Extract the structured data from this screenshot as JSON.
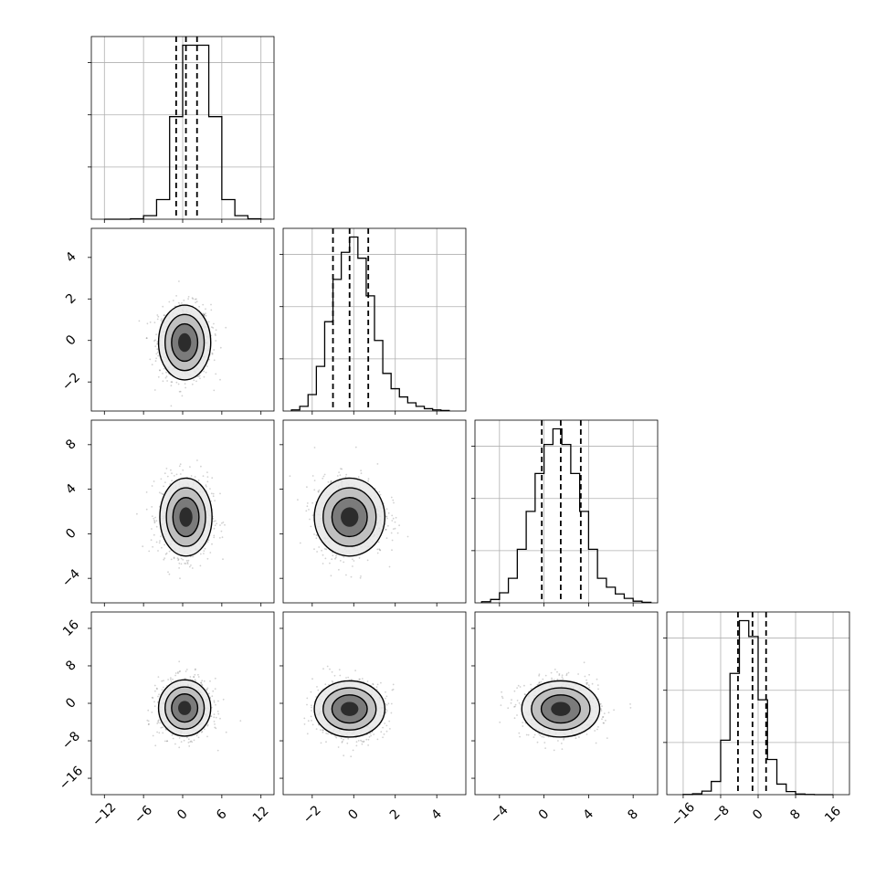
{
  "chart_data": {
    "type": "corner",
    "title": "",
    "parameters": [
      {
        "index": 0,
        "range": [
          -14,
          14
        ],
        "ticks": [
          -12,
          -6,
          0,
          6,
          12
        ],
        "tick_labels": [
          "−12",
          "−6",
          "0",
          "6",
          "12"
        ],
        "mean": 0.5,
        "sd": 2.0,
        "quantiles": [
          -1.0,
          0.5,
          2.2
        ]
      },
      {
        "index": 1,
        "range": [
          -3.4,
          5.4
        ],
        "ticks": [
          -2,
          0,
          2,
          4
        ],
        "tick_labels": [
          "−2",
          "0",
          "2",
          "4"
        ],
        "mean": -0.2,
        "sd": 0.85,
        "quantiles": [
          -1.0,
          -0.2,
          0.7
        ]
      },
      {
        "index": 2,
        "range": [
          -6.2,
          10.2
        ],
        "ticks": [
          -4,
          0,
          4,
          8
        ],
        "tick_labels": [
          "−4",
          "0",
          "4",
          "8"
        ],
        "mean": 1.5,
        "sd": 1.7,
        "quantiles": [
          -0.2,
          1.5,
          3.3
        ]
      },
      {
        "index": 3,
        "range": [
          -19.5,
          19.5
        ],
        "ticks": [
          -16,
          -8,
          0,
          8,
          16
        ],
        "tick_labels": [
          "−16",
          "−8",
          "0",
          "8",
          "16"
        ],
        "mean": -1.2,
        "sd": 3.0,
        "quantiles": [
          -4.3,
          -1.2,
          1.7
        ]
      }
    ],
    "histograms": [
      {
        "param": 0,
        "bin_edges": [
          -12,
          -10,
          -8,
          -6,
          -4,
          -2,
          0,
          2,
          4,
          6,
          8,
          10,
          12
        ],
        "values": [
          0,
          0,
          5,
          40,
          220,
          1150,
          1950,
          1950,
          1150,
          220,
          40,
          5
        ]
      },
      {
        "param": 1,
        "bin_edges": [
          -3.0,
          -2.6,
          -2.2,
          -1.8,
          -1.4,
          -1.0,
          -0.6,
          -0.2,
          0.2,
          0.6,
          1.0,
          1.4,
          1.8,
          2.2,
          2.6,
          3.0,
          3.4,
          3.8,
          4.2,
          4.6
        ],
        "values": [
          10,
          40,
          140,
          380,
          760,
          1120,
          1350,
          1480,
          1300,
          980,
          600,
          320,
          190,
          120,
          70,
          40,
          20,
          10,
          5
        ]
      },
      {
        "param": 2,
        "bin_edges": [
          -5.6,
          -4.8,
          -4.0,
          -3.2,
          -2.4,
          -1.6,
          -0.8,
          0.0,
          0.8,
          1.6,
          2.4,
          3.2,
          4.0,
          4.8,
          5.6,
          6.4,
          7.2,
          8.0,
          8.8,
          9.6
        ],
        "values": [
          10,
          30,
          90,
          220,
          480,
          820,
          1160,
          1420,
          1560,
          1420,
          1160,
          820,
          480,
          220,
          140,
          80,
          40,
          15,
          5
        ]
      },
      {
        "param": 3,
        "bin_edges": [
          -16,
          -14,
          -12,
          -10,
          -8,
          -6,
          -4,
          -2,
          0,
          2,
          4,
          6,
          8,
          10,
          12,
          14,
          16
        ],
        "values": [
          2,
          10,
          40,
          150,
          620,
          1380,
          1980,
          1800,
          1080,
          400,
          120,
          35,
          8,
          2,
          0,
          0
        ]
      }
    ],
    "pairs": [
      {
        "x": 0,
        "y": 1,
        "x_center": 0.3,
        "y_center": -0.1,
        "x_sd": 2.0,
        "y_sd": 0.9,
        "contour_levels": [
          0.5,
          1.0,
          1.5,
          2.0
        ]
      },
      {
        "x": 0,
        "y": 2,
        "x_center": 0.5,
        "y_center": 1.5,
        "x_sd": 2.0,
        "y_sd": 1.75,
        "contour_levels": [
          0.5,
          1.0,
          1.5,
          2.0
        ]
      },
      {
        "x": 1,
        "y": 2,
        "x_center": -0.2,
        "y_center": 1.5,
        "x_sd": 0.85,
        "y_sd": 1.75,
        "contour_levels": [
          0.5,
          1.0,
          1.5,
          2.0
        ]
      },
      {
        "x": 0,
        "y": 3,
        "x_center": 0.3,
        "y_center": -1.0,
        "x_sd": 2.0,
        "y_sd": 3.0,
        "contour_levels": [
          0.5,
          1.0,
          1.5,
          2.0
        ]
      },
      {
        "x": 1,
        "y": 3,
        "x_center": -0.2,
        "y_center": -1.2,
        "x_sd": 0.85,
        "y_sd": 3.0,
        "contour_levels": [
          0.5,
          1.0,
          1.5,
          2.0
        ]
      },
      {
        "x": 2,
        "y": 3,
        "x_center": 1.5,
        "y_center": -1.2,
        "x_sd": 1.75,
        "y_sd": 3.0,
        "contour_levels": [
          0.5,
          1.0,
          1.5,
          2.0
        ]
      }
    ],
    "grid": true,
    "xlabel": "",
    "ylabel": ""
  }
}
